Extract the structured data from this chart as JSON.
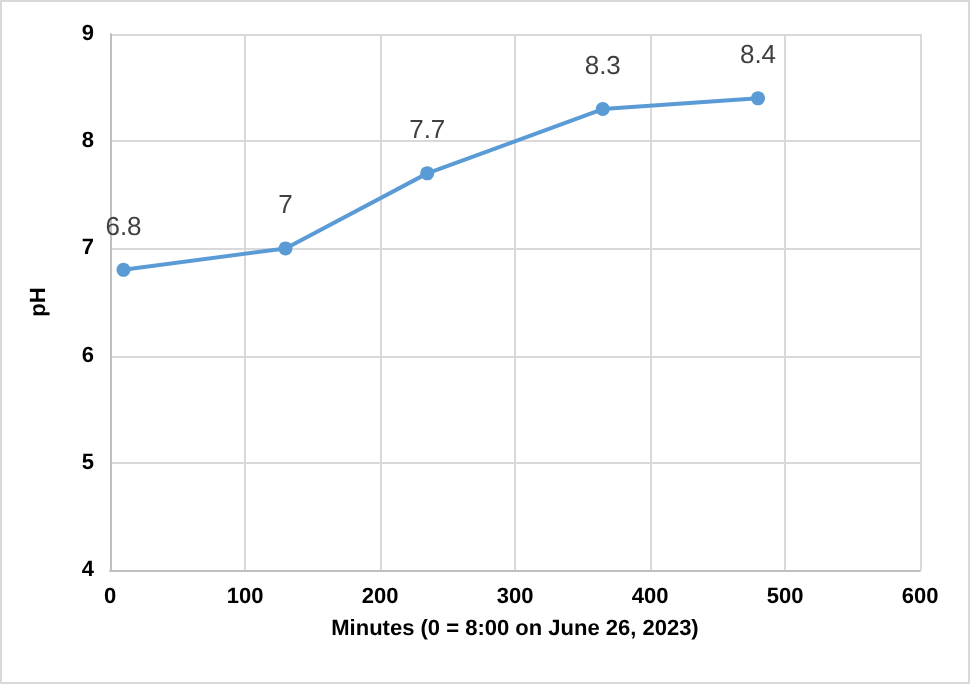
{
  "chart_data": {
    "type": "line",
    "xlabel": "Minutes (0 = 8:00 on June 26, 2023)",
    "ylabel": "pH",
    "x": [
      10,
      130,
      235,
      365,
      480
    ],
    "series": [
      {
        "color": "#5b9bd5",
        "values": [
          6.8,
          7,
          7.7,
          8.3,
          8.4
        ]
      }
    ],
    "xlim": [
      0,
      600
    ],
    "xticks": [
      0,
      100,
      200,
      300,
      400,
      500,
      600
    ],
    "ylim": [
      4,
      9
    ],
    "yticks": [
      4,
      5,
      6,
      7,
      8,
      9
    ],
    "grid": true,
    "marker": "circle",
    "data_labels": true
  }
}
